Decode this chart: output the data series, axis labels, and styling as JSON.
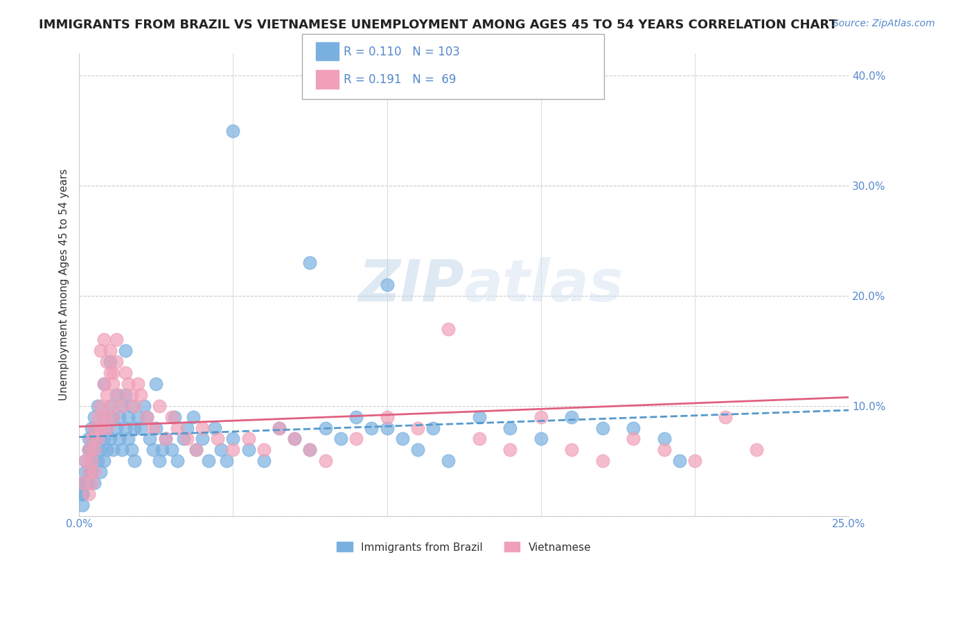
{
  "title": "IMMIGRANTS FROM BRAZIL VS VIETNAMESE UNEMPLOYMENT AMONG AGES 45 TO 54 YEARS CORRELATION CHART",
  "source_text": "Source: ZipAtlas.com",
  "xlabel": "",
  "ylabel": "Unemployment Among Ages 45 to 54 years",
  "xlim": [
    0.0,
    0.25
  ],
  "ylim": [
    0.0,
    0.42
  ],
  "xticks": [
    0.0,
    0.05,
    0.1,
    0.15,
    0.2,
    0.25
  ],
  "xticklabels": [
    "0.0%",
    "",
    "",
    "",
    "",
    "25.0%"
  ],
  "yticks": [
    0.0,
    0.1,
    0.2,
    0.3,
    0.4
  ],
  "yticklabels": [
    "",
    "10.0%",
    "20.0%",
    "30.0%",
    "40.0%"
  ],
  "background_color": "#ffffff",
  "grid_color": "#cccccc",
  "brazil_color": "#7ab0e0",
  "viet_color": "#f0a0b8",
  "brazil_R": 0.11,
  "brazil_N": 103,
  "viet_R": 0.191,
  "viet_N": 69,
  "legend_label_brazil": "Immigrants from Brazil",
  "legend_label_viet": "Vietnamese",
  "watermark_zip": "ZIP",
  "watermark_atlas": "atlas",
  "brazil_scatter_x": [
    0.001,
    0.002,
    0.002,
    0.003,
    0.003,
    0.003,
    0.004,
    0.004,
    0.004,
    0.005,
    0.005,
    0.005,
    0.006,
    0.006,
    0.007,
    0.007,
    0.007,
    0.008,
    0.008,
    0.008,
    0.009,
    0.009,
    0.01,
    0.01,
    0.011,
    0.011,
    0.012,
    0.012,
    0.013,
    0.013,
    0.014,
    0.014,
    0.015,
    0.015,
    0.016,
    0.016,
    0.017,
    0.017,
    0.018,
    0.018,
    0.019,
    0.02,
    0.021,
    0.022,
    0.023,
    0.024,
    0.025,
    0.026,
    0.027,
    0.028,
    0.03,
    0.031,
    0.032,
    0.034,
    0.035,
    0.037,
    0.038,
    0.04,
    0.042,
    0.044,
    0.046,
    0.048,
    0.05,
    0.055,
    0.06,
    0.065,
    0.07,
    0.075,
    0.08,
    0.085,
    0.09,
    0.095,
    0.1,
    0.105,
    0.11,
    0.115,
    0.12,
    0.13,
    0.14,
    0.15,
    0.16,
    0.17,
    0.18,
    0.19,
    0.195,
    0.1,
    0.075,
    0.05,
    0.025,
    0.015,
    0.01,
    0.008,
    0.006,
    0.005,
    0.004,
    0.003,
    0.003,
    0.002,
    0.002,
    0.001,
    0.001,
    0.001,
    0.001
  ],
  "brazil_scatter_y": [
    0.02,
    0.03,
    0.05,
    0.04,
    0.06,
    0.03,
    0.05,
    0.07,
    0.04,
    0.06,
    0.08,
    0.03,
    0.07,
    0.05,
    0.08,
    0.06,
    0.04,
    0.09,
    0.07,
    0.05,
    0.08,
    0.06,
    0.1,
    0.07,
    0.09,
    0.06,
    0.11,
    0.08,
    0.09,
    0.07,
    0.1,
    0.06,
    0.11,
    0.08,
    0.09,
    0.07,
    0.1,
    0.06,
    0.08,
    0.05,
    0.09,
    0.08,
    0.1,
    0.09,
    0.07,
    0.06,
    0.08,
    0.05,
    0.06,
    0.07,
    0.06,
    0.09,
    0.05,
    0.07,
    0.08,
    0.09,
    0.06,
    0.07,
    0.05,
    0.08,
    0.06,
    0.05,
    0.07,
    0.06,
    0.05,
    0.08,
    0.07,
    0.06,
    0.08,
    0.07,
    0.09,
    0.08,
    0.08,
    0.07,
    0.06,
    0.08,
    0.05,
    0.09,
    0.08,
    0.07,
    0.09,
    0.08,
    0.08,
    0.07,
    0.05,
    0.21,
    0.23,
    0.35,
    0.12,
    0.15,
    0.14,
    0.12,
    0.1,
    0.09,
    0.08,
    0.07,
    0.06,
    0.04,
    0.03,
    0.02,
    0.01,
    0.03,
    0.02
  ],
  "viet_scatter_x": [
    0.001,
    0.002,
    0.003,
    0.003,
    0.004,
    0.004,
    0.005,
    0.005,
    0.006,
    0.006,
    0.007,
    0.007,
    0.008,
    0.008,
    0.009,
    0.009,
    0.01,
    0.01,
    0.011,
    0.011,
    0.012,
    0.013,
    0.014,
    0.015,
    0.016,
    0.017,
    0.018,
    0.019,
    0.02,
    0.022,
    0.024,
    0.026,
    0.028,
    0.03,
    0.032,
    0.035,
    0.038,
    0.04,
    0.045,
    0.05,
    0.055,
    0.06,
    0.065,
    0.07,
    0.075,
    0.08,
    0.09,
    0.1,
    0.11,
    0.12,
    0.13,
    0.14,
    0.15,
    0.16,
    0.17,
    0.18,
    0.19,
    0.2,
    0.21,
    0.22,
    0.007,
    0.008,
    0.009,
    0.01,
    0.011,
    0.012,
    0.004,
    0.005,
    0.003
  ],
  "viet_scatter_y": [
    0.03,
    0.05,
    0.04,
    0.06,
    0.07,
    0.05,
    0.08,
    0.06,
    0.09,
    0.07,
    0.1,
    0.08,
    0.12,
    0.09,
    0.11,
    0.08,
    0.13,
    0.1,
    0.12,
    0.09,
    0.14,
    0.11,
    0.1,
    0.13,
    0.12,
    0.11,
    0.1,
    0.12,
    0.11,
    0.09,
    0.08,
    0.1,
    0.07,
    0.09,
    0.08,
    0.07,
    0.06,
    0.08,
    0.07,
    0.06,
    0.07,
    0.06,
    0.08,
    0.07,
    0.06,
    0.05,
    0.07,
    0.09,
    0.08,
    0.17,
    0.07,
    0.06,
    0.09,
    0.06,
    0.05,
    0.07,
    0.06,
    0.05,
    0.09,
    0.06,
    0.15,
    0.16,
    0.14,
    0.15,
    0.13,
    0.16,
    0.03,
    0.04,
    0.02
  ]
}
